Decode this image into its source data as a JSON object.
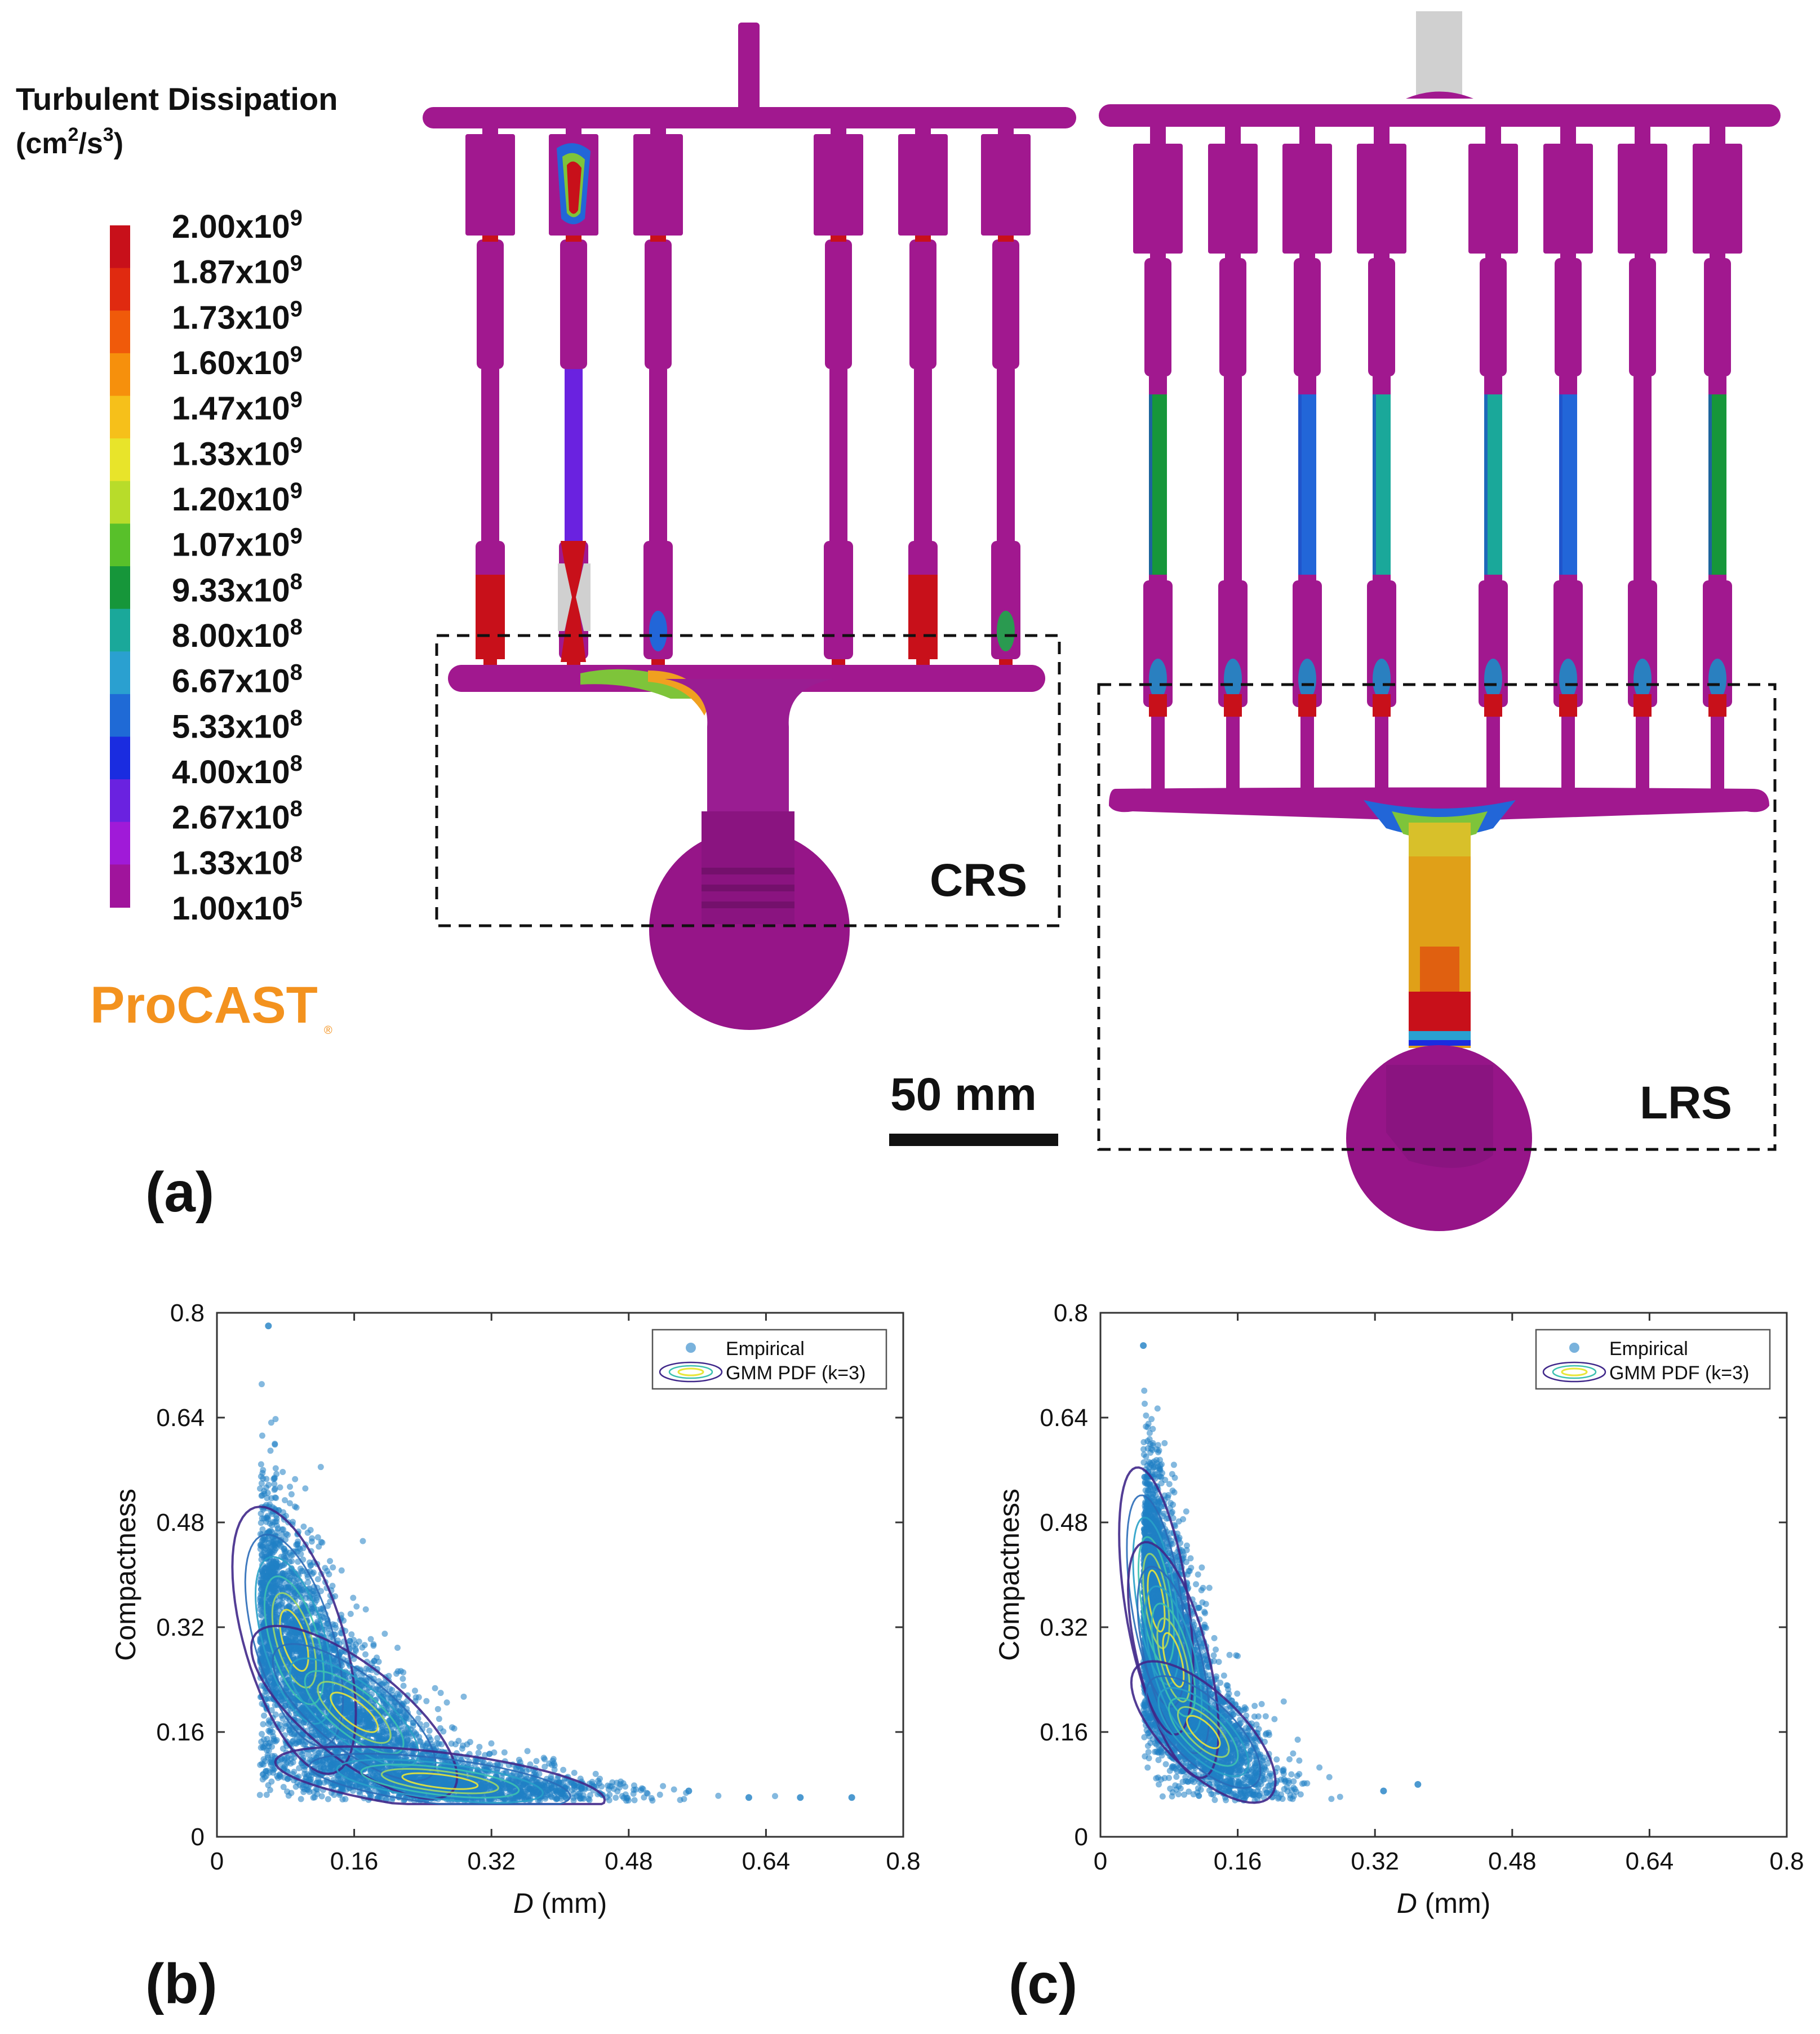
{
  "legend": {
    "title_line1": "Turbulent Dissipation",
    "title_unit_base": "(cm",
    "title_unit_sup1": "2",
    "title_unit_mid": "/s",
    "title_unit_sup2": "3",
    "title_unit_end": ")",
    "ticks": [
      {
        "mant": "2.00x10",
        "exp": "9"
      },
      {
        "mant": "1.87x10",
        "exp": "9"
      },
      {
        "mant": "1.73x10",
        "exp": "9"
      },
      {
        "mant": "1.60x10",
        "exp": "9"
      },
      {
        "mant": "1.47x10",
        "exp": "9"
      },
      {
        "mant": "1.33x10",
        "exp": "9"
      },
      {
        "mant": "1.20x10",
        "exp": "9"
      },
      {
        "mant": "1.07x10",
        "exp": "9"
      },
      {
        "mant": "9.33x10",
        "exp": "8"
      },
      {
        "mant": "8.00x10",
        "exp": "8"
      },
      {
        "mant": "6.67x10",
        "exp": "8"
      },
      {
        "mant": "5.33x10",
        "exp": "8"
      },
      {
        "mant": "4.00x10",
        "exp": "8"
      },
      {
        "mant": "2.67x10",
        "exp": "8"
      },
      {
        "mant": "1.33x10",
        "exp": "8"
      },
      {
        "mant": "1.00x10",
        "exp": "5"
      }
    ],
    "colors": [
      "#c8101a",
      "#e02a10",
      "#f05a0a",
      "#f6900c",
      "#f6c01a",
      "#e8e42a",
      "#b8dc2a",
      "#58c02a",
      "#16963a",
      "#1aa89a",
      "#2aa0d0",
      "#1f6ad6",
      "#1a2ce0",
      "#6a22e0",
      "#a01ad8",
      "#a0149c"
    ],
    "software_logo": "ProCAST"
  },
  "panel_a": {
    "label": "(a)",
    "region_left": "CRS",
    "region_right": "LRS",
    "scale_bar_text": "50 mm"
  },
  "panel_b": {
    "label": "(b)",
    "chart_data": {
      "type": "scatter",
      "xlabel": "D (mm)",
      "ylabel": "Compactness",
      "xlim": [
        0,
        0.8
      ],
      "ylim": [
        0,
        0.8
      ],
      "xticks": [
        "0",
        "0.16",
        "0.32",
        "0.48",
        "0.64",
        "0.8"
      ],
      "yticks": [
        "0",
        "0.16",
        "0.32",
        "0.48",
        "0.64",
        "0.8"
      ],
      "legend": {
        "position": "top-right",
        "entries": [
          "Empirical",
          "GMM PDF (k=3)"
        ]
      },
      "gmm_components": [
        {
          "mean": [
            0.09,
            0.3
          ],
          "sd": [
            0.03,
            0.085
          ],
          "rho": -0.55
        },
        {
          "mean": [
            0.16,
            0.19
          ],
          "sd": [
            0.05,
            0.055
          ],
          "rho": -0.75
        },
        {
          "mean": [
            0.26,
            0.085
          ],
          "sd": [
            0.08,
            0.022
          ],
          "rho": -0.55
        }
      ],
      "outlier_points": [
        [
          0.06,
          0.78
        ],
        [
          0.74,
          0.06
        ],
        [
          0.62,
          0.06
        ],
        [
          0.68,
          0.06
        ],
        [
          0.55,
          0.07
        ]
      ]
    }
  },
  "panel_c": {
    "label": "(c)",
    "chart_data": {
      "type": "scatter",
      "xlabel": "D (mm)",
      "ylabel": "Compactness",
      "xlim": [
        0,
        0.8
      ],
      "ylim": [
        0,
        0.8
      ],
      "xticks": [
        "0",
        "0.16",
        "0.32",
        "0.48",
        "0.64",
        "0.8"
      ],
      "yticks": [
        "0",
        "0.16",
        "0.32",
        "0.48",
        "0.64",
        "0.8"
      ],
      "legend": {
        "position": "top-right",
        "entries": [
          "Empirical",
          "GMM PDF (k=3)"
        ]
      },
      "gmm_components": [
        {
          "mean": [
            0.065,
            0.36
          ],
          "sd": [
            0.018,
            0.085
          ],
          "rho": -0.5
        },
        {
          "mean": [
            0.085,
            0.27
          ],
          "sd": [
            0.022,
            0.075
          ],
          "rho": -0.6
        },
        {
          "mean": [
            0.12,
            0.16
          ],
          "sd": [
            0.035,
            0.045
          ],
          "rho": -0.7
        }
      ],
      "outlier_points": [
        [
          0.05,
          0.75
        ],
        [
          0.37,
          0.08
        ],
        [
          0.33,
          0.07
        ]
      ]
    }
  }
}
